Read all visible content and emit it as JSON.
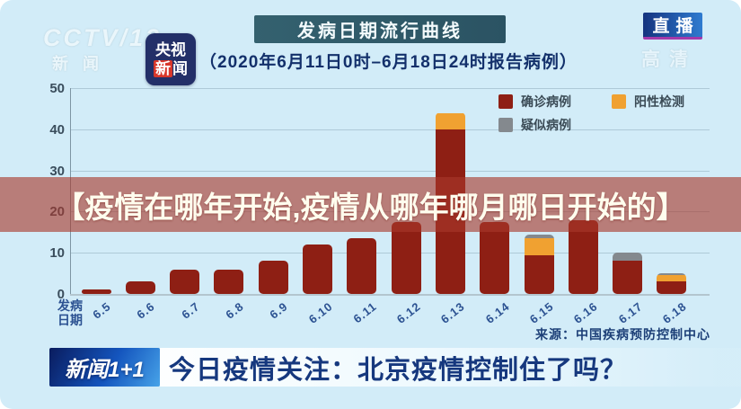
{
  "header": {
    "watermark_line1": "CCTV/13",
    "watermark_line2": "新闻",
    "app_badge": {
      "line1": "央视",
      "line2_hl": "新",
      "line2_rest": "闻"
    },
    "title": "发病日期流行曲线",
    "subtitle": "（2020年6月11日0时–6月18日24时报告病例）",
    "live_badge": "直播",
    "hd_watermark": "高清"
  },
  "overlay_caption": "【疫情在哪年开始,疫情从哪年哪月哪日开始的】",
  "chart_data": {
    "type": "bar",
    "stacked": true,
    "title": "发病日期流行曲线",
    "subtitle": "（2020年6月11日0时–6月18日24时报告病例）",
    "xlabel": "发病日期",
    "xlabel_lines": [
      "发病",
      "日期"
    ],
    "ylabel": "",
    "ylim": [
      0,
      50
    ],
    "yticks": [
      0,
      10,
      20,
      30,
      40,
      50
    ],
    "grid": true,
    "legend_position": "top-right",
    "categories": [
      "6.5",
      "6.6",
      "6.7",
      "6.8",
      "6.9",
      "6.10",
      "6.11",
      "6.12",
      "6.13",
      "6.14",
      "6.15",
      "6.16",
      "6.17",
      "6.18"
    ],
    "series": [
      {
        "name": "确诊病例",
        "color": "#8e1f14",
        "values": [
          1,
          3,
          6,
          6,
          8,
          12,
          13.5,
          17.5,
          40,
          17.5,
          9.5,
          18,
          8,
          3
        ]
      },
      {
        "name": "阳性检测",
        "color": "#f0a131",
        "values": [
          0,
          0,
          0,
          0,
          0,
          0,
          0,
          0,
          4,
          0,
          4,
          0,
          0,
          1.5
        ]
      },
      {
        "name": "疑似病例",
        "color": "#84898e",
        "values": [
          0,
          0,
          0,
          0,
          0,
          0,
          0,
          0,
          0,
          0,
          1,
          0,
          2,
          0.5
        ]
      }
    ]
  },
  "source_note": "来源：中国疾病预防控制中心",
  "footer": {
    "logo": "新闻1+1",
    "headline": "今日疫情关注：北京疫情控制住了吗？"
  },
  "colors": {
    "background": "#d2ecf8",
    "confirmed": "#8e1f14",
    "positive": "#f0a131",
    "suspected": "#84898e",
    "caption_band": "rgba(168,57,44,0.62)",
    "headline_navy": "#16387e",
    "title_bar": "#2f5a68"
  }
}
